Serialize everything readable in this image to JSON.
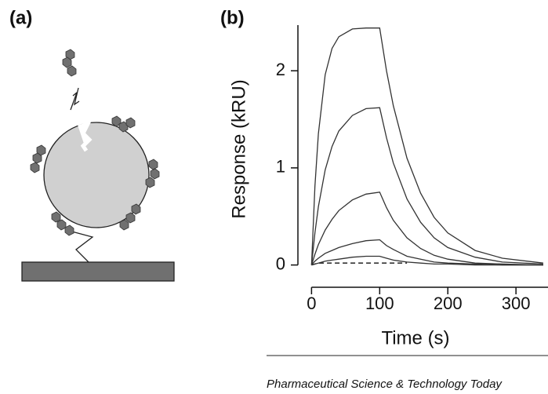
{
  "panel_labels": [
    "(a)",
    "(b)"
  ],
  "footer": "Pharmaceutical Science & Technology Today",
  "chart_data": {
    "type": "line",
    "x_label": "Time (s)",
    "y_label": "Response (kRU)",
    "x": [
      0,
      5,
      10,
      20,
      30,
      40,
      60,
      80,
      100,
      110,
      120,
      140,
      160,
      180,
      200,
      240,
      280,
      340
    ],
    "series": [
      {
        "color": "#333333",
        "values": [
          0,
          0.81,
          1.35,
          1.96,
          2.23,
          2.35,
          2.43,
          2.44,
          2.44,
          2.0,
          1.64,
          1.1,
          0.74,
          0.49,
          0.33,
          0.15,
          0.07,
          0.02
        ]
      },
      {
        "color": "#333333",
        "values": [
          0,
          0.33,
          0.6,
          0.98,
          1.22,
          1.38,
          1.54,
          1.61,
          1.62,
          1.31,
          1.05,
          0.68,
          0.44,
          0.28,
          0.18,
          0.08,
          0.03,
          0.01
        ]
      },
      {
        "color": "#333333",
        "values": [
          0,
          0.11,
          0.21,
          0.36,
          0.47,
          0.56,
          0.67,
          0.73,
          0.75,
          0.59,
          0.46,
          0.28,
          0.17,
          0.1,
          0.06,
          0.02,
          0.01,
          0
        ]
      },
      {
        "color": "#333333",
        "values": [
          0,
          0.04,
          0.07,
          0.12,
          0.15,
          0.18,
          0.22,
          0.25,
          0.26,
          0.2,
          0.16,
          0.09,
          0.06,
          0.03,
          0.02,
          0.01,
          0,
          0
        ]
      },
      {
        "color": "#333333",
        "values": [
          0,
          0.01,
          0.02,
          0.04,
          0.05,
          0.06,
          0.08,
          0.09,
          0.09,
          0.07,
          0.05,
          0.03,
          0.02,
          0.01,
          0.01,
          0,
          0,
          0
        ]
      },
      {
        "color": "#333333",
        "dashed": true,
        "values": [
          0,
          0.01,
          0.02,
          0.02,
          0.02,
          0.02,
          0.02,
          0.02,
          0.02,
          0.02,
          0.02,
          0.02,
          null,
          null,
          null,
          null,
          null,
          null
        ]
      }
    ],
    "xlim": [
      -20,
      347
    ],
    "ylim": [
      -0.1,
      2.47
    ],
    "xticks": [
      0,
      100,
      200,
      300
    ],
    "yticks": [
      0,
      1,
      2
    ]
  }
}
